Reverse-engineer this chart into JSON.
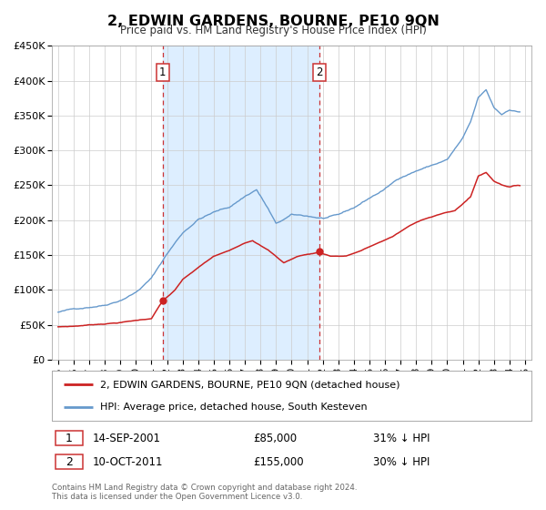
{
  "title": "2, EDWIN GARDENS, BOURNE, PE10 9QN",
  "subtitle": "Price paid vs. HM Land Registry's House Price Index (HPI)",
  "ylim": [
    0,
    450000
  ],
  "yticks": [
    0,
    50000,
    100000,
    150000,
    200000,
    250000,
    300000,
    350000,
    400000,
    450000
  ],
  "ytick_labels": [
    "£0",
    "£50K",
    "£100K",
    "£150K",
    "£200K",
    "£250K",
    "£300K",
    "£350K",
    "£400K",
    "£450K"
  ],
  "xlim_start": 1994.6,
  "xlim_end": 2025.4,
  "sale1_year": 2001.708,
  "sale1_price": 85000,
  "sale1_date": "14-SEP-2001",
  "sale1_pct": "31%",
  "sale2_year": 2011.775,
  "sale2_price": 155000,
  "sale2_date": "10-OCT-2011",
  "sale2_pct": "30%",
  "hpi_color": "#6699cc",
  "price_color": "#cc2222",
  "shaded_color": "#ddeeff",
  "vline_color": "#cc3333",
  "grid_color": "#cccccc",
  "bg": "#ffffff",
  "legend_label_price": "2, EDWIN GARDENS, BOURNE, PE10 9QN (detached house)",
  "legend_label_hpi": "HPI: Average price, detached house, South Kesteven",
  "footer1": "Contains HM Land Registry data © Crown copyright and database right 2024.",
  "footer2": "This data is licensed under the Open Government Licence v3.0."
}
